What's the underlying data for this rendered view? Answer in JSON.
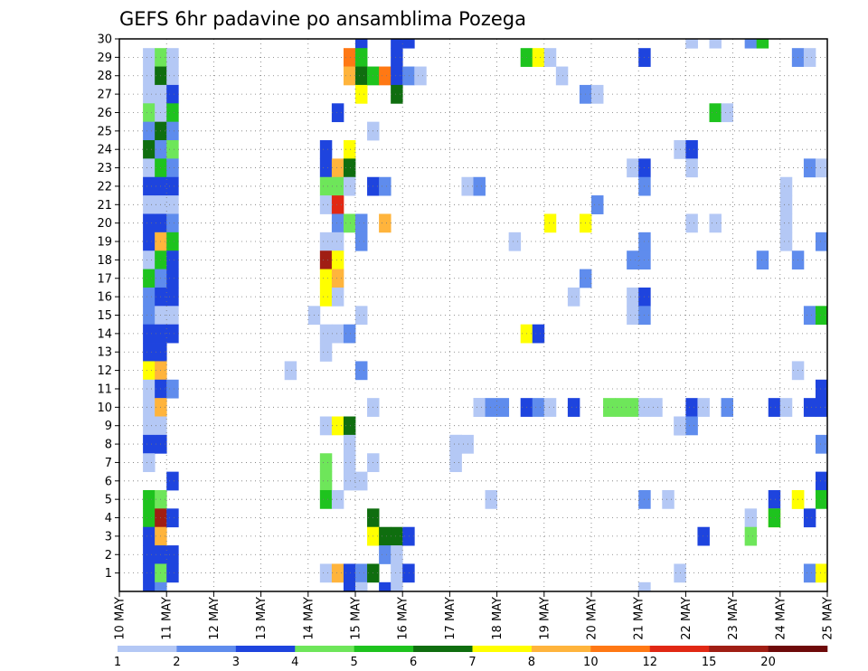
{
  "chart_data": {
    "type": "heatmap",
    "title": "GEFS 6hr padavine po ansamblima Pozega",
    "x_ticks": [
      "10 MAY",
      "11 MAY",
      "12 MAY",
      "13 MAY",
      "14 MAY",
      "15 MAY",
      "16 MAY",
      "17 MAY",
      "18 MAY",
      "19 MAY",
      "20 MAY",
      "21 MAY",
      "22 MAY",
      "23 MAY",
      "24 MAY",
      "25 MAY"
    ],
    "y_ticks": [
      "1",
      "2",
      "3",
      "4",
      "5",
      "6",
      "7",
      "8",
      "9",
      "10",
      "11",
      "12",
      "13",
      "14",
      "15",
      "16",
      "17",
      "18",
      "19",
      "20",
      "21",
      "22",
      "23",
      "24",
      "25",
      "26",
      "27",
      "28",
      "29",
      "30"
    ],
    "x_range": [
      "10 MAY",
      "25 MAY"
    ],
    "x_step_hours": 6,
    "y_range": [
      0,
      30
    ],
    "grid": true,
    "colorbar": {
      "ticks": [
        "1",
        "2",
        "3",
        "4",
        "5",
        "6",
        "7",
        "8",
        "10",
        "12",
        "15",
        "20"
      ],
      "colors": [
        "#b4c8f5",
        "#5f8ced",
        "#1e44de",
        "#6ee65a",
        "#1ec31e",
        "#0f6e0f",
        "#ffff00",
        "#ffb43c",
        "#ff7814",
        "#e12814",
        "#a01e14",
        "#6e0a0a"
      ]
    },
    "cells": [
      [
        2,
        29,
        0
      ],
      [
        2,
        28,
        0
      ],
      [
        2,
        27,
        0
      ],
      [
        2,
        26,
        3
      ],
      [
        2,
        25,
        1
      ],
      [
        2,
        24,
        5
      ],
      [
        2,
        23,
        0
      ],
      [
        2,
        22,
        2
      ],
      [
        2,
        21,
        0
      ],
      [
        2,
        20,
        2
      ],
      [
        2,
        19,
        2
      ],
      [
        2,
        18,
        0
      ],
      [
        2,
        17,
        4
      ],
      [
        2,
        16,
        1
      ],
      [
        2,
        15,
        1
      ],
      [
        2,
        14,
        2
      ],
      [
        2,
        13,
        2
      ],
      [
        2,
        12,
        6
      ],
      [
        2,
        11,
        0
      ],
      [
        2,
        10,
        0
      ],
      [
        2,
        9,
        0
      ],
      [
        2,
        8,
        2
      ],
      [
        2,
        7,
        0
      ],
      [
        2,
        5,
        4
      ],
      [
        2,
        4,
        4
      ],
      [
        2,
        3,
        2
      ],
      [
        2,
        2,
        2
      ],
      [
        2,
        1,
        2
      ],
      [
        2,
        0,
        2
      ],
      [
        3,
        29,
        3
      ],
      [
        3,
        28,
        5
      ],
      [
        3,
        27,
        0
      ],
      [
        3,
        26,
        0
      ],
      [
        3,
        25,
        5
      ],
      [
        3,
        24,
        1
      ],
      [
        3,
        23,
        4
      ],
      [
        3,
        22,
        2
      ],
      [
        3,
        21,
        0
      ],
      [
        3,
        20,
        2
      ],
      [
        3,
        19,
        7
      ],
      [
        3,
        18,
        4
      ],
      [
        3,
        17,
        1
      ],
      [
        3,
        16,
        2
      ],
      [
        3,
        15,
        0
      ],
      [
        3,
        14,
        2
      ],
      [
        3,
        13,
        2
      ],
      [
        3,
        12,
        7
      ],
      [
        3,
        11,
        2
      ],
      [
        3,
        10,
        7
      ],
      [
        3,
        9,
        0
      ],
      [
        3,
        8,
        2
      ],
      [
        3,
        5,
        3
      ],
      [
        3,
        4,
        10
      ],
      [
        3,
        3,
        7
      ],
      [
        3,
        2,
        2
      ],
      [
        3,
        1,
        3
      ],
      [
        3,
        0,
        1
      ],
      [
        4,
        29,
        0
      ],
      [
        4,
        28,
        0
      ],
      [
        4,
        27,
        2
      ],
      [
        4,
        26,
        4
      ],
      [
        4,
        25,
        1
      ],
      [
        4,
        24,
        3
      ],
      [
        4,
        23,
        1
      ],
      [
        4,
        22,
        2
      ],
      [
        4,
        21,
        0
      ],
      [
        4,
        20,
        1
      ],
      [
        4,
        19,
        4
      ],
      [
        4,
        18,
        2
      ],
      [
        4,
        17,
        2
      ],
      [
        4,
        16,
        2
      ],
      [
        4,
        15,
        0
      ],
      [
        4,
        14,
        2
      ],
      [
        4,
        11,
        1
      ],
      [
        4,
        6,
        2
      ],
      [
        4,
        4,
        2
      ],
      [
        4,
        2,
        2
      ],
      [
        4,
        1,
        2
      ],
      [
        14,
        12,
        0
      ],
      [
        16,
        15,
        0
      ],
      [
        17,
        24,
        2
      ],
      [
        17,
        23,
        2
      ],
      [
        17,
        22,
        3
      ],
      [
        17,
        21,
        0
      ],
      [
        17,
        19,
        0
      ],
      [
        17,
        18,
        10
      ],
      [
        17,
        17,
        6
      ],
      [
        17,
        16,
        6
      ],
      [
        17,
        14,
        0
      ],
      [
        17,
        13,
        0
      ],
      [
        17,
        9,
        0
      ],
      [
        17,
        7,
        3
      ],
      [
        17,
        6,
        3
      ],
      [
        17,
        5,
        4
      ],
      [
        17,
        1,
        0
      ],
      [
        18,
        26,
        2
      ],
      [
        18,
        23,
        7
      ],
      [
        18,
        22,
        3
      ],
      [
        18,
        21,
        9
      ],
      [
        18,
        20,
        1
      ],
      [
        18,
        19,
        0
      ],
      [
        18,
        18,
        6
      ],
      [
        18,
        17,
        7
      ],
      [
        18,
        16,
        0
      ],
      [
        18,
        14,
        0
      ],
      [
        18,
        9,
        6
      ],
      [
        18,
        5,
        0
      ],
      [
        18,
        1,
        7
      ],
      [
        19,
        29,
        8
      ],
      [
        19,
        28,
        7
      ],
      [
        19,
        24,
        6
      ],
      [
        19,
        23,
        5
      ],
      [
        19,
        22,
        0
      ],
      [
        19,
        20,
        3
      ],
      [
        19,
        14,
        1
      ],
      [
        19,
        9,
        5
      ],
      [
        19,
        8,
        0
      ],
      [
        19,
        7,
        0
      ],
      [
        19,
        6,
        0
      ],
      [
        19,
        1,
        2
      ],
      [
        19,
        0,
        2
      ],
      [
        20,
        30,
        2
      ],
      [
        20,
        29,
        4
      ],
      [
        20,
        28,
        5
      ],
      [
        20,
        27,
        6
      ],
      [
        20,
        20,
        1
      ],
      [
        20,
        19,
        1
      ],
      [
        20,
        15,
        0
      ],
      [
        20,
        12,
        1
      ],
      [
        20,
        6,
        0
      ],
      [
        20,
        1,
        1
      ],
      [
        20,
        0,
        0
      ],
      [
        21,
        28,
        4
      ],
      [
        21,
        25,
        0
      ],
      [
        21,
        22,
        2
      ],
      [
        21,
        10,
        0
      ],
      [
        21,
        7,
        0
      ],
      [
        21,
        4,
        5
      ],
      [
        21,
        3,
        6
      ],
      [
        21,
        1,
        5
      ],
      [
        22,
        28,
        8
      ],
      [
        22,
        22,
        1
      ],
      [
        22,
        20,
        7
      ],
      [
        22,
        3,
        5
      ],
      [
        22,
        2,
        1
      ],
      [
        22,
        0,
        2
      ],
      [
        23,
        30,
        2
      ],
      [
        23,
        29,
        2
      ],
      [
        23,
        28,
        2
      ],
      [
        23,
        27,
        5
      ],
      [
        23,
        3,
        5
      ],
      [
        23,
        2,
        0
      ],
      [
        23,
        1,
        0
      ],
      [
        23,
        0,
        0
      ],
      [
        24,
        30,
        2
      ],
      [
        24,
        28,
        1
      ],
      [
        24,
        3,
        2
      ],
      [
        24,
        1,
        2
      ],
      [
        25,
        28,
        0
      ],
      [
        28,
        8,
        0
      ],
      [
        28,
        7,
        0
      ],
      [
        28,
        8,
        0
      ],
      [
        29,
        22,
        0
      ],
      [
        29,
        8,
        0
      ],
      [
        30,
        22,
        1
      ],
      [
        30,
        10,
        0
      ],
      [
        30,
        10,
        0
      ],
      [
        31,
        5,
        0
      ],
      [
        31,
        10,
        1
      ],
      [
        32,
        10,
        1
      ],
      [
        33,
        19,
        0
      ],
      [
        34,
        29,
        4
      ],
      [
        34,
        14,
        6
      ],
      [
        34,
        10,
        2
      ],
      [
        35,
        29,
        6
      ],
      [
        35,
        14,
        2
      ],
      [
        35,
        10,
        1
      ],
      [
        36,
        29,
        0
      ],
      [
        36,
        20,
        6
      ],
      [
        36,
        10,
        0
      ],
      [
        37,
        28,
        0
      ],
      [
        38,
        16,
        0
      ],
      [
        38,
        10,
        2
      ],
      [
        39,
        27,
        1
      ],
      [
        39,
        20,
        6
      ],
      [
        39,
        17,
        1
      ],
      [
        40,
        27,
        0
      ],
      [
        40,
        21,
        1
      ],
      [
        40,
        21,
        1
      ],
      [
        41,
        10,
        3
      ],
      [
        42,
        10,
        3
      ],
      [
        43,
        23,
        0
      ],
      [
        43,
        18,
        1
      ],
      [
        43,
        16,
        0
      ],
      [
        43,
        15,
        0
      ],
      [
        43,
        10,
        3
      ],
      [
        44,
        29,
        2
      ],
      [
        44,
        23,
        2
      ],
      [
        44,
        22,
        1
      ],
      [
        44,
        19,
        1
      ],
      [
        44,
        18,
        1
      ],
      [
        44,
        16,
        2
      ],
      [
        44,
        15,
        1
      ],
      [
        44,
        10,
        0
      ],
      [
        44,
        5,
        1
      ],
      [
        44,
        0,
        0
      ],
      [
        45,
        10,
        0
      ],
      [
        46,
        5,
        0
      ],
      [
        47,
        31,
        0
      ],
      [
        47,
        24,
        0
      ],
      [
        47,
        9,
        1
      ],
      [
        47,
        9,
        0
      ],
      [
        47,
        1,
        0
      ],
      [
        48,
        30,
        0
      ],
      [
        48,
        30,
        0
      ],
      [
        48,
        24,
        2
      ],
      [
        48,
        23,
        0
      ],
      [
        48,
        20,
        0
      ],
      [
        48,
        10,
        2
      ],
      [
        48,
        9,
        1
      ],
      [
        49,
        3,
        2
      ],
      [
        49,
        10,
        0
      ],
      [
        50,
        30,
        0
      ],
      [
        50,
        26,
        4
      ],
      [
        50,
        20,
        0
      ],
      [
        51,
        26,
        0
      ],
      [
        51,
        10,
        1
      ],
      [
        53,
        30,
        1
      ],
      [
        53,
        4,
        0
      ],
      [
        53,
        3,
        3
      ],
      [
        54,
        30,
        4
      ],
      [
        54,
        18,
        1
      ],
      [
        55,
        10,
        2
      ],
      [
        55,
        5,
        2
      ],
      [
        55,
        4,
        6
      ],
      [
        55,
        4,
        4
      ],
      [
        56,
        22,
        0
      ],
      [
        56,
        21,
        0
      ],
      [
        56,
        20,
        0
      ],
      [
        56,
        19,
        0
      ],
      [
        56,
        10,
        0
      ],
      [
        57,
        29,
        1
      ],
      [
        57,
        18,
        1
      ],
      [
        57,
        12,
        0
      ],
      [
        57,
        5,
        6
      ],
      [
        57,
        5,
        6
      ],
      [
        58,
        29,
        0
      ],
      [
        58,
        23,
        1
      ],
      [
        58,
        15,
        1
      ],
      [
        58,
        10,
        2
      ],
      [
        58,
        4,
        2
      ],
      [
        58,
        1,
        1
      ],
      [
        59,
        23,
        0
      ],
      [
        59,
        19,
        1
      ],
      [
        59,
        15,
        4
      ],
      [
        59,
        11,
        2
      ],
      [
        59,
        10,
        2
      ],
      [
        59,
        8,
        1
      ],
      [
        59,
        6,
        2
      ],
      [
        59,
        5,
        4
      ],
      [
        59,
        1,
        6
      ],
      [
        60,
        26,
        0
      ],
      [
        60,
        10,
        7
      ],
      [
        60,
        8,
        9
      ],
      [
        60,
        7,
        0
      ],
      [
        61,
        10,
        6
      ],
      [
        61,
        9,
        0
      ],
      [
        61,
        7,
        0
      ],
      [
        61,
        6,
        0
      ],
      [
        62,
        13,
        2
      ],
      [
        62,
        10,
        9
      ],
      [
        62,
        9,
        1
      ],
      [
        62,
        8,
        2
      ],
      [
        62,
        6,
        0
      ],
      [
        62,
        5,
        1
      ],
      [
        62,
        1,
        0
      ],
      [
        63,
        28,
        4
      ],
      [
        63,
        20,
        1
      ],
      [
        63,
        16,
        0
      ],
      [
        63,
        15,
        5
      ],
      [
        63,
        12,
        6
      ],
      [
        63,
        10,
        9
      ],
      [
        63,
        6,
        0
      ],
      [
        63,
        5,
        1
      ],
      [
        63,
        4,
        0
      ],
      [
        63,
        3,
        0
      ],
      [
        63,
        2,
        0
      ],
      [
        63,
        1,
        8
      ],
      [
        64,
        16,
        3
      ],
      [
        64,
        16,
        4
      ],
      [
        64,
        15,
        2
      ],
      [
        64,
        12,
        5
      ],
      [
        64,
        10,
        0
      ],
      [
        64,
        9,
        1
      ],
      [
        64,
        6,
        1
      ],
      [
        64,
        5,
        0
      ],
      [
        64,
        4,
        0
      ],
      [
        64,
        3,
        0
      ],
      [
        65,
        12,
        2
      ],
      [
        65,
        7,
        4
      ],
      [
        65,
        5,
        0
      ],
      [
        65,
        4,
        0
      ],
      [
        65,
        1,
        3
      ],
      [
        66,
        29,
        2
      ],
      [
        66,
        19,
        0
      ],
      [
        66,
        18,
        4
      ],
      [
        66,
        15,
        1
      ],
      [
        66,
        13,
        0
      ],
      [
        66,
        12,
        9
      ],
      [
        66,
        10,
        0
      ],
      [
        66,
        7,
        0
      ],
      [
        66,
        6,
        4
      ],
      [
        66,
        5,
        0
      ],
      [
        66,
        4,
        0
      ],
      [
        66,
        3,
        1
      ],
      [
        66,
        1,
        0
      ],
      [
        67,
        29,
        0
      ],
      [
        67,
        19,
        1
      ],
      [
        67,
        18,
        2
      ],
      [
        67,
        15,
        1
      ],
      [
        67,
        14,
        0
      ],
      [
        67,
        12,
        0
      ],
      [
        67,
        6,
        2
      ],
      [
        67,
        5,
        1
      ],
      [
        67,
        1,
        4
      ],
      [
        68,
        20,
        2
      ],
      [
        68,
        18,
        2
      ],
      [
        68,
        9,
        5
      ],
      [
        68,
        6,
        3
      ],
      [
        68,
        1,
        5
      ],
      [
        68,
        0,
        5
      ],
      [
        69,
        26,
        4
      ],
      [
        69,
        20,
        8
      ],
      [
        69,
        18,
        1
      ],
      [
        69,
        16,
        4
      ],
      [
        69,
        9,
        2
      ],
      [
        69,
        8,
        2
      ],
      [
        69,
        6,
        5
      ],
      [
        69,
        1,
        2
      ],
      [
        70,
        26,
        0
      ],
      [
        70,
        20,
        5
      ],
      [
        70,
        9,
        2
      ],
      [
        70,
        1,
        2
      ],
      [
        71,
        25,
        7
      ],
      [
        71,
        24,
        2
      ],
      [
        71,
        20,
        2
      ],
      [
        71,
        17,
        2
      ],
      [
        71,
        14,
        2
      ],
      [
        71,
        11,
        2
      ],
      [
        71,
        10,
        0
      ],
      [
        71,
        9,
        0
      ],
      [
        71,
        7,
        4
      ],
      [
        71,
        6,
        4
      ],
      [
        71,
        5,
        2
      ],
      [
        71,
        0,
        0
      ]
    ]
  }
}
